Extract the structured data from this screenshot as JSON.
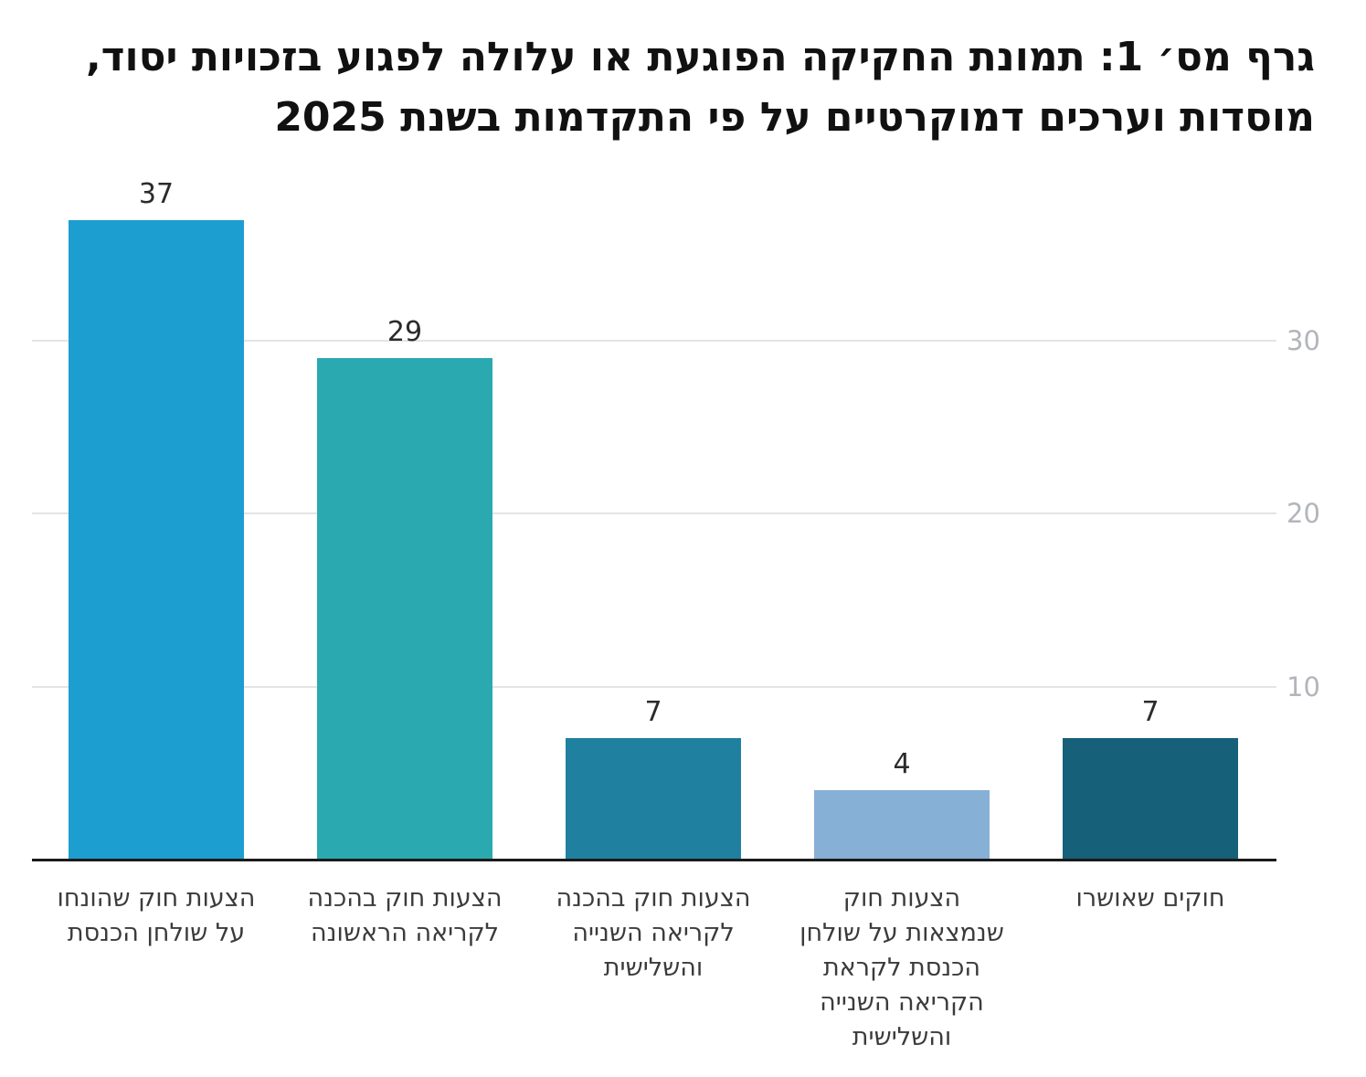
{
  "title": {
    "text": "גרף מס׳ 1: תמונת החקיקה הפוגעת או עלולה לפגוע בזכויות יסוד,\nמוסדות וערכים דמוקרטיים על פי התקדמות בשנת 2025"
  },
  "chart_data": {
    "type": "bar",
    "title": "גרף מס׳ 1: תמונת החקיקה הפוגעת או עלולה לפגוע בזכויות יסוד, מוסדות וערכים דמוקרטיים על פי התקדמות בשנת 2025",
    "categories": [
      "הצעות חוק שהונחו\nעל שולחן הכנסת",
      "הצעות חוק בהכנה\nלקריאה הראשונה",
      "הצעות חוק בהכנה\nלקריאה השנייה\nוהשלישית",
      "הצעות חוק\nשנמצאות על שולחן\nהכנסת לקראת\nהקריאה השנייה\nוהשלישית",
      "חוקים שאושרו"
    ],
    "values": [
      37,
      29,
      7,
      4,
      7
    ],
    "bar_colors": [
      "#1c9fd0",
      "#2ba9b1",
      "#1f80a0",
      "#87b0d6",
      "#17607a"
    ],
    "value_label_color": "#2b2b2b",
    "category_label_color": "#3b3b3b",
    "yticks": [
      10,
      20,
      30
    ],
    "ytick_color": "#b2b5ba",
    "ytick_side": "right",
    "ylim": [
      0,
      37
    ],
    "grid": true,
    "gridline_color": "#e4e4e4",
    "axis_line_color": "#1a1a1a",
    "xlabel": "",
    "ylabel": "",
    "legend": "none"
  }
}
